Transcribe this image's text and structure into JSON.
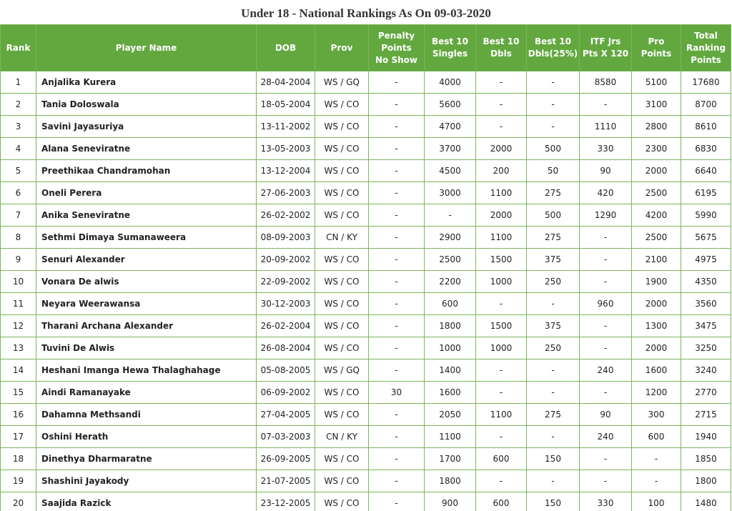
{
  "title": "Under 18 - National Rankings As On 09-03-2020",
  "table": {
    "header": [
      "Rank",
      "Player Name",
      "DOB",
      "Prov",
      "Penalty\nPoints\nNo Show",
      "Best 10\nSingles",
      "Best 10\nDbls",
      "Best 10\nDbls(25%)",
      "ITF Jrs\nPts X 120",
      "Pro\nPoints",
      "Total\nRanking\nPoints"
    ],
    "rows": [
      [
        "1",
        "Anjalika Kurera",
        "28-04-2004",
        "WS / GQ",
        "-",
        "4000",
        "-",
        "-",
        "8580",
        "5100",
        "17680"
      ],
      [
        "2",
        "Tania Doloswala",
        "18-05-2004",
        "WS / CO",
        "-",
        "5600",
        "-",
        "-",
        "-",
        "3100",
        "8700"
      ],
      [
        "3",
        "Savini Jayasuriya",
        "13-11-2002",
        "WS / CO",
        "-",
        "4700",
        "-",
        "-",
        "1110",
        "2800",
        "8610"
      ],
      [
        "4",
        "Alana Seneviratne",
        "13-05-2003",
        "WS / CO",
        "-",
        "3700",
        "2000",
        "500",
        "330",
        "2300",
        "6830"
      ],
      [
        "5",
        "Preethikaa Chandramohan",
        "13-12-2004",
        "WS / CO",
        "-",
        "4500",
        "200",
        "50",
        "90",
        "2000",
        "6640"
      ],
      [
        "6",
        "Oneli Perera",
        "27-06-2003",
        "WS / CO",
        "-",
        "3000",
        "1100",
        "275",
        "420",
        "2500",
        "6195"
      ],
      [
        "7",
        "Anika Seneviratne",
        "26-02-2002",
        "WS / CO",
        "-",
        "-",
        "2000",
        "500",
        "1290",
        "4200",
        "5990"
      ],
      [
        "8",
        "Sethmi Dimaya Sumanaweera",
        "08-09-2003",
        "CN / KY",
        "-",
        "2900",
        "1100",
        "275",
        "-",
        "2500",
        "5675"
      ],
      [
        "9",
        "Senuri Alexander",
        "20-09-2002",
        "WS / CO",
        "-",
        "2500",
        "1500",
        "375",
        "-",
        "2100",
        "4975"
      ],
      [
        "10",
        "Vonara De alwis",
        "22-09-2002",
        "WS / CO",
        "-",
        "2200",
        "1000",
        "250",
        "-",
        "1900",
        "4350"
      ],
      [
        "11",
        "Neyara Weerawansa",
        "30-12-2003",
        "WS / CO",
        "-",
        "600",
        "-",
        "-",
        "960",
        "2000",
        "3560"
      ],
      [
        "12",
        "Tharani Archana Alexander",
        "26-02-2004",
        "WS / CO",
        "-",
        "1800",
        "1500",
        "375",
        "-",
        "1300",
        "3475"
      ],
      [
        "13",
        "Tuvini De Alwis",
        "26-08-2004",
        "WS / CO",
        "-",
        "1000",
        "1000",
        "250",
        "-",
        "2000",
        "3250"
      ],
      [
        "14",
        "Heshani Imanga Hewa Thalaghahage",
        "05-08-2005",
        "WS / GQ",
        "-",
        "1400",
        "-",
        "-",
        "240",
        "1600",
        "3240"
      ],
      [
        "15",
        "Aindi Ramanayake",
        "06-09-2002",
        "WS / CO",
        "30",
        "1600",
        "-",
        "-",
        "-",
        "1200",
        "2770"
      ],
      [
        "16",
        "Dahamna Methsandi",
        "27-04-2005",
        "WS / CO",
        "-",
        "2050",
        "1100",
        "275",
        "90",
        "300",
        "2715"
      ],
      [
        "17",
        "Oshini Herath",
        "07-03-2003",
        "CN / KY",
        "-",
        "1100",
        "-",
        "-",
        "240",
        "600",
        "1940"
      ],
      [
        "18",
        "Dinethya Dharmaratne",
        "26-09-2005",
        "WS / CO",
        "-",
        "1700",
        "600",
        "150",
        "-",
        "-",
        "1850"
      ],
      [
        "19",
        "Shashini Jayakody",
        "21-07-2005",
        "WS / CO",
        "-",
        "1800",
        "-",
        "-",
        "-",
        "-",
        "1800"
      ],
      [
        "20",
        "Saajida Razick",
        "23-12-2005",
        "WS / CO",
        "-",
        "900",
        "600",
        "150",
        "330",
        "100",
        "1480"
      ]
    ]
  }
}
